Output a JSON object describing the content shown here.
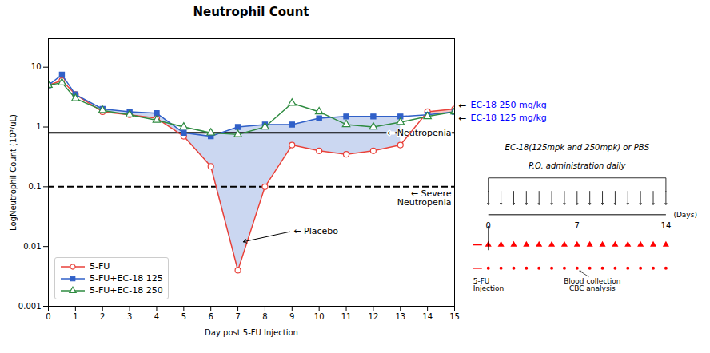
{
  "chart_data": {
    "type": "line",
    "title": "Neutrophil Count",
    "xlabel": "Day post 5-FU Injection",
    "ylabel": "LogNeutrophil Count (10³/uL)",
    "x": [
      0,
      0.5,
      1,
      2,
      3,
      4,
      5,
      6,
      7,
      8,
      9,
      10,
      11,
      12,
      13,
      14,
      15
    ],
    "series": [
      {
        "name": "5-FU",
        "color": "#e8413a",
        "marker": "circle",
        "values": [
          5.0,
          6.0,
          3.5,
          1.8,
          1.6,
          1.4,
          0.7,
          0.22,
          0.004,
          0.1,
          0.5,
          0.4,
          0.35,
          0.4,
          0.5,
          1.8,
          2.0
        ]
      },
      {
        "name": "5-FU+EC-18 125",
        "color": "#3060c8",
        "marker": "square",
        "values": [
          5.0,
          7.5,
          3.5,
          2.0,
          1.8,
          1.7,
          0.8,
          0.7,
          1.0,
          1.1,
          1.1,
          1.4,
          1.5,
          1.5,
          1.5,
          1.6,
          1.8
        ]
      },
      {
        "name": "5-FU+EC-18 250",
        "color": "#2e8b40",
        "marker": "triangle",
        "values": [
          5.0,
          5.5,
          3.0,
          1.9,
          1.6,
          1.3,
          1.0,
          0.8,
          0.75,
          1.0,
          2.5,
          1.8,
          1.1,
          1.0,
          1.2,
          1.5,
          1.8
        ]
      }
    ],
    "xlim": [
      0,
      15
    ],
    "xticks": [
      0,
      1,
      2,
      3,
      4,
      5,
      6,
      7,
      8,
      9,
      10,
      11,
      12,
      13,
      14,
      15
    ],
    "ylim": [
      0.001,
      30
    ],
    "yticks": [
      0.001,
      0.01,
      0.1,
      1,
      10
    ],
    "log": "y",
    "legend": "lower left",
    "reference_lines": [
      {
        "value": 0.8,
        "label": "← Neutropenia",
        "line_style": "solid"
      },
      {
        "value": 0.1,
        "label": "← Severe\n     Neutropenia",
        "line_style": "dashed"
      }
    ],
    "annotations": [
      {
        "text": "← Placebo",
        "x": 9.0,
        "y": 0.018,
        "arrow_to": [
          7.2,
          0.012
        ]
      }
    ],
    "end_labels": [
      {
        "series": "5-FU+EC-18 250",
        "pointer": "←",
        "text": "EC-18 250 mg/kg",
        "color": "blue"
      },
      {
        "series": "5-FU+EC-18 125",
        "pointer": "←",
        "text": "EC-18 125 mg/kg",
        "color": "blue"
      }
    ],
    "inset": {
      "title_lines": [
        "EC-18(125mpk and 250mpk) or PBS",
        "P.O. administration daily"
      ],
      "ticks": [
        0,
        7,
        14
      ],
      "unit": "(Days)",
      "injection_label": "5-FU\nInjection",
      "collection_label": "Blood collection\nCBC analysis",
      "color": "red"
    }
  }
}
